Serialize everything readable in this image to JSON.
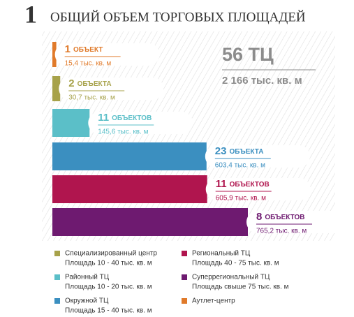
{
  "chart_data": {
    "type": "bar",
    "orientation": "horizontal",
    "title_number": "1",
    "title": "ОБЩИЙ ОБЪЕМ ТОРГОВЫХ ПЛОЩАДЕЙ",
    "total_count_label": "56 ТЦ",
    "total_area_label": "2 166 тыс. кв. м",
    "counts": [
      1,
      2,
      11,
      23,
      11,
      8
    ],
    "count_words": [
      "ОБЪЕКТ",
      "ОБЪЕКТА",
      "ОБЪЕКТОВ",
      "ОБЪЕКТА",
      "ОБЪЕКТОВ",
      "ОБЪЕКТОВ"
    ],
    "values": [
      15.4,
      30.7,
      145.6,
      603.4,
      605.9,
      765.2
    ],
    "value_labels": [
      "15,4 тыс. кв. м",
      "30,7 тыс. кв. м",
      "145,6 тыс. кв. м",
      "603,4 тыс. кв. м",
      "605,9 тыс. кв. м",
      "765,2 тыс. кв. м"
    ],
    "colors": [
      "#e07a2a",
      "#a7a24a",
      "#5bbfc8",
      "#3b8fc0",
      "#b0154e",
      "#6e1a70"
    ],
    "legend": [
      {
        "name": "Специализированный центр",
        "note": "Площадь 10 - 40 тыс. кв. м",
        "color": "#a7a24a"
      },
      {
        "name": "Районный ТЦ",
        "note": "Площадь 10 - 20 тыс. кв. м",
        "color": "#5bbfc8"
      },
      {
        "name": "Окружной ТЦ",
        "note": "Площадь 15 - 40 тыс. кв. м",
        "color": "#3b8fc0"
      },
      {
        "name": "Региональный ТЦ",
        "note": "Площадь 40 - 75 тыс. кв. м",
        "color": "#b0154e"
      },
      {
        "name": "Суперрегиональный ТЦ",
        "note": "Площадь свыше 75 тыс. кв. м",
        "color": "#6e1a70"
      },
      {
        "name": "Аутлет-центр",
        "note": null,
        "color": "#e07a2a"
      }
    ]
  }
}
